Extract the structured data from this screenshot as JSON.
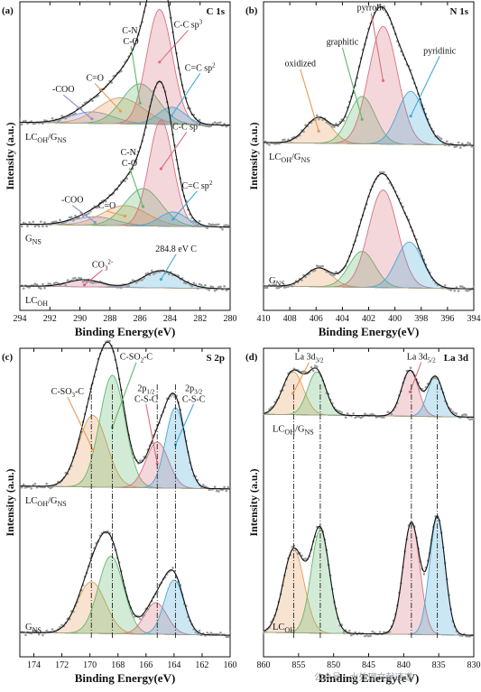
{
  "watermark": "公众号 · 水处理文献速递",
  "chart_data": [
    {
      "id": "a",
      "type": "line",
      "panel_label": "(a)",
      "title": "C 1s",
      "xlabel": "Binding Energy(eV)",
      "ylabel": "Intensity (a.u.)",
      "xlim": [
        294,
        280
      ],
      "xticks": [
        "294",
        "292",
        "290",
        "288",
        "286",
        "284",
        "282",
        "280"
      ],
      "spectra": [
        {
          "name": "LCOH/GNS",
          "label_main": "LC",
          "label_sub1": "OH",
          "label_mid": "/G",
          "label_sub2": "NS",
          "baseline": 0.86,
          "scale": 0.8,
          "peaks": [
            {
              "center": 289.2,
              "height": 0.08,
              "width": 1.4,
              "color": "#8a8fc8",
              "label": "-COO",
              "label_x": 291.1,
              "label_y": 0.63
            },
            {
              "center": 287.3,
              "height": 0.18,
              "width": 1.5,
              "color": "#e59a55",
              "label": "C=O",
              "label_x": 289.0,
              "label_y": 0.55
            },
            {
              "center": 286.0,
              "height": 0.28,
              "width": 1.2,
              "color": "#5fb86a",
              "label": "C-N,",
              "label2": "C-O",
              "label_x": 286.6,
              "label_y": 0.22
            },
            {
              "center": 284.7,
              "height": 0.8,
              "width": 0.85,
              "color": "#d9707c",
              "label": "C-C sp3",
              "label_x": 282.8,
              "label_y": 0.18
            },
            {
              "center": 283.9,
              "height": 0.12,
              "width": 0.9,
              "color": "#44a9d6",
              "label": "C=C sp2",
              "label_x": 282.0,
              "label_y": 0.48
            }
          ]
        },
        {
          "name": "GNS",
          "label_main": "G",
          "label_sub1": "NS",
          "baseline": 1.57,
          "scale": 0.72,
          "peaks": [
            {
              "center": 289.0,
              "height": 0.06,
              "width": 1.4,
              "color": "#8a8fc8",
              "label": "-COO",
              "label_x": 290.5,
              "label_y": 1.4
            },
            {
              "center": 287.0,
              "height": 0.14,
              "width": 1.5,
              "color": "#e59a55",
              "label": "C=O",
              "label_x": 288.2,
              "label_y": 1.44
            },
            {
              "center": 285.8,
              "height": 0.26,
              "width": 1.2,
              "color": "#5fb86a",
              "label": "C-N,",
              "label2": "C-O",
              "label_x": 286.7,
              "label_y": 1.07
            },
            {
              "center": 284.6,
              "height": 0.74,
              "width": 0.8,
              "color": "#d9707c",
              "label": "C-C sp3",
              "label_x": 282.9,
              "label_y": 0.89
            },
            {
              "center": 283.8,
              "height": 0.1,
              "width": 0.9,
              "color": "#44a9d6",
              "label": "C=C sp2",
              "label_x": 282.2,
              "label_y": 1.3
            }
          ]
        },
        {
          "name": "LCOH",
          "label_main": "LC",
          "label_sub1": "OH",
          "baseline": 2.0,
          "scale": 0.22,
          "peaks": [
            {
              "center": 289.7,
              "height": 0.05,
              "width": 1.1,
              "color": "#e06090",
              "label": "CO3 2-",
              "label_x": 288.5,
              "label_y": 1.85
            },
            {
              "center": 284.6,
              "height": 0.12,
              "width": 1.2,
              "color": "#44a9d6",
              "label": "284.8 eV C",
              "label_x": 283.6,
              "label_y": 1.74
            }
          ]
        }
      ]
    },
    {
      "id": "b",
      "type": "line",
      "panel_label": "(b)",
      "title": "N 1s",
      "xlabel": "Binding Energy(eV)",
      "ylabel": "Intensity (a.u.)",
      "xlim": [
        410,
        394
      ],
      "xticks": [
        "410",
        "408",
        "406",
        "404",
        "402",
        "400",
        "398",
        "396",
        "394"
      ],
      "spectra": [
        {
          "name": "LCOH/GNS",
          "label_main": "LC",
          "label_sub1": "OH",
          "label_mid": "/G",
          "label_sub2": "NS",
          "baseline": 1.0,
          "scale": 1.0,
          "peaks": [
            {
              "center": 405.8,
              "height": 0.18,
              "width": 1.0,
              "color": "#e59a55",
              "label": "oxidized",
              "label_x": 407.2,
              "label_y": 0.45
            },
            {
              "center": 402.5,
              "height": 0.33,
              "width": 1.0,
              "color": "#5fb86a",
              "label": "graphitic",
              "label_x": 404.0,
              "label_y": 0.3
            },
            {
              "center": 400.9,
              "height": 0.82,
              "width": 1.1,
              "color": "#d9707c",
              "label": "pyrrolic",
              "label_x": 401.8,
              "label_y": 0.06
            },
            {
              "center": 398.8,
              "height": 0.37,
              "width": 1.0,
              "color": "#44a9d6",
              "label": "pyridinic",
              "label_x": 396.6,
              "label_y": 0.36
            }
          ]
        },
        {
          "name": "GNS",
          "label_main": "G",
          "label_sub1": "NS",
          "baseline": 2.0,
          "scale": 1.0,
          "peaks": [
            {
              "center": 405.8,
              "height": 0.13,
              "width": 1.0,
              "color": "#e59a55"
            },
            {
              "center": 402.5,
              "height": 0.25,
              "width": 1.0,
              "color": "#5fb86a"
            },
            {
              "center": 400.9,
              "height": 0.68,
              "width": 1.1,
              "color": "#d9707c"
            },
            {
              "center": 398.9,
              "height": 0.32,
              "width": 1.0,
              "color": "#44a9d6"
            }
          ]
        }
      ]
    },
    {
      "id": "c",
      "type": "line",
      "panel_label": "(c)",
      "title": "S 2p",
      "xlabel": "Binding Energy(eV)",
      "ylabel": "Intensity (a.u.)",
      "xlim": [
        175,
        160
      ],
      "xticks": [
        "174",
        "172",
        "170",
        "168",
        "166",
        "164",
        "162",
        "160"
      ],
      "tick_values": [
        174,
        172,
        170,
        168,
        166,
        164,
        162,
        160
      ],
      "spectra": [
        {
          "name": "LCOH/GNS",
          "label_main": "LC",
          "label_sub1": "OH",
          "label_mid": "/G",
          "label_sub2": "NS",
          "baseline": 0.98,
          "scale": 1.0,
          "peaks": [
            {
              "center": 169.8,
              "height": 0.5,
              "width": 1.0,
              "color": "#e59a55",
              "label": "C-SO3-C",
              "label_x": 171.6,
              "label_y": 0.32
            },
            {
              "center": 168.4,
              "height": 0.78,
              "width": 0.9,
              "color": "#5fb86a",
              "label": "C-SO2-C",
              "label_x": 166.7,
              "label_y": 0.08
            },
            {
              "center": 165.2,
              "height": 0.32,
              "width": 0.8,
              "color": "#d9707c",
              "label": "2p1/2",
              "label2": "C-S-C",
              "label_x": 166.0,
              "label_y": 0.3
            },
            {
              "center": 163.9,
              "height": 0.56,
              "width": 0.7,
              "color": "#44a9d6",
              "label": "2p3/2",
              "label2": "C-S-C",
              "label_x": 162.6,
              "label_y": 0.3
            }
          ]
        },
        {
          "name": "GNS",
          "label_main": "G",
          "label_sub1": "NS",
          "baseline": 2.0,
          "scale": 1.0,
          "peaks": [
            {
              "center": 169.9,
              "height": 0.36,
              "width": 1.0,
              "color": "#e59a55"
            },
            {
              "center": 168.5,
              "height": 0.54,
              "width": 0.9,
              "color": "#5fb86a"
            },
            {
              "center": 165.3,
              "height": 0.22,
              "width": 0.8,
              "color": "#d9707c"
            },
            {
              "center": 164.0,
              "height": 0.38,
              "width": 0.7,
              "color": "#44a9d6"
            }
          ]
        }
      ],
      "guide_lines": [
        169.9,
        168.4,
        165.2,
        163.9
      ]
    },
    {
      "id": "d",
      "type": "line",
      "panel_label": "(d)",
      "title": "La 3d",
      "xlabel": "Binding Energy(eV)",
      "ylabel": "Intensity (a.u.)",
      "xlim": [
        860,
        830
      ],
      "xticks": [
        "860",
        "855",
        "850",
        "845",
        "840",
        "835",
        "830"
      ],
      "spectra": [
        {
          "name": "LCOH/GNS",
          "label_main": "LC",
          "label_sub1": "OH",
          "label_mid": "/G",
          "label_sub2": "NS",
          "baseline": 0.48,
          "scale": 0.3,
          "peaks": [
            {
              "center": 855.8,
              "height": 0.3,
              "width": 1.5,
              "color": "#e59a55",
              "label": "La 3d3/2",
              "label_x": 853.5,
              "label_y": 0.08
            },
            {
              "center": 852.4,
              "height": 0.3,
              "width": 1.3,
              "color": "#5fb86a"
            },
            {
              "center": 839.1,
              "height": 0.32,
              "width": 1.2,
              "color": "#d9707c",
              "label": "La 3d5/2",
              "label_x": 837.5,
              "label_y": 0.08
            },
            {
              "center": 835.5,
              "height": 0.28,
              "width": 1.1,
              "color": "#44a9d6"
            }
          ]
        },
        {
          "name": "LCOH",
          "label_main": "LC",
          "label_sub1": "OH",
          "baseline": 2.0,
          "scale": 1.0,
          "peaks": [
            {
              "center": 855.7,
              "height": 0.58,
              "width": 1.5,
              "color": "#e59a55"
            },
            {
              "center": 851.9,
              "height": 0.72,
              "width": 1.3,
              "color": "#5fb86a"
            },
            {
              "center": 838.9,
              "height": 0.78,
              "width": 1.2,
              "color": "#d9707c"
            },
            {
              "center": 835.2,
              "height": 0.82,
              "width": 1.1,
              "color": "#44a9d6"
            }
          ]
        }
      ],
      "guide_lines": [
        855.7,
        851.9,
        838.9,
        835.2
      ]
    }
  ]
}
